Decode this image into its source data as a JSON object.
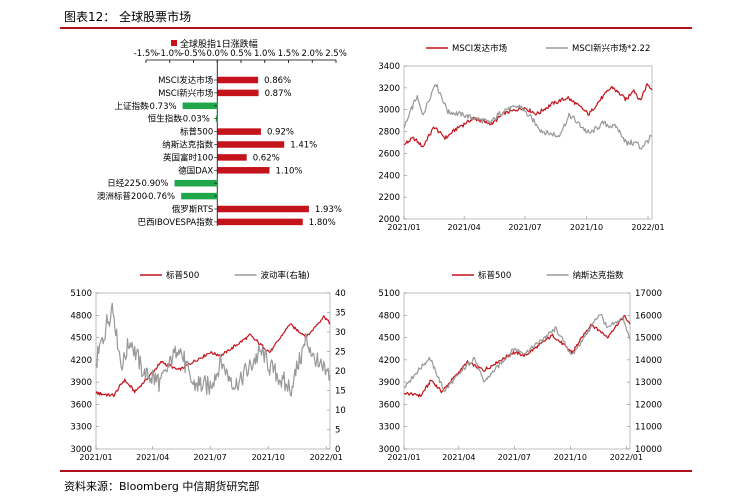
{
  "figure_title": "图表12：  全球股票市场",
  "source": "资料来源：Bloomberg  中信期货研究部",
  "colors": {
    "red": "#c4131b",
    "grey": "#999999",
    "green": "#1fa749",
    "frame": "#b0b0b0",
    "rule": "#b0121b"
  },
  "chart_data": [
    {
      "type": "bar",
      "legend": "全球股指1日涨跌幅",
      "legend_position": "top",
      "categories": [
        "MSCI发达市场",
        "MSCI新兴市场",
        "上证指数",
        "恒生指数",
        "标普500",
        "纳斯达克指数",
        "英国富时100",
        "德国DAX",
        "日经225",
        "澳洲标普200",
        "俄罗斯RTS",
        "巴西IBOVESPA指数"
      ],
      "values": [
        0.86,
        0.87,
        -0.73,
        -0.03,
        0.92,
        1.41,
        0.62,
        1.1,
        -0.9,
        -0.76,
        1.93,
        1.8
      ],
      "value_labels": [
        "0.86%",
        "0.87%",
        "-0.73%",
        "-0.03%",
        "0.92%",
        "1.41%",
        "0.62%",
        "1.10%",
        "-0.90%",
        "-0.76%",
        "1.93%",
        "1.80%"
      ],
      "xlim": [
        -1.5,
        2.5
      ],
      "x_ticks": [
        "-1.5%",
        "-1.0%",
        "-0.5%",
        "0.0%",
        "0.5%",
        "1.0%",
        "1.5%",
        "2.0%",
        "2.5%"
      ],
      "xlabel": "",
      "ylabel": ""
    },
    {
      "type": "line",
      "series": [
        {
          "name": "MSCI发达市场",
          "color": "#c4131b"
        },
        {
          "name": "MSCI新兴市场*2.22",
          "color": "#999999"
        }
      ],
      "x_range": [
        "2021-01-01",
        "2022-01-07"
      ],
      "x_ticks": [
        "2021/01",
        "2021/04",
        "2021/07",
        "2021/10",
        "2022/01"
      ],
      "ylim": [
        2000,
        3400
      ],
      "y_ticks": [
        "2000",
        "2200",
        "2400",
        "2600",
        "2800",
        "3000",
        "3200",
        "3400"
      ],
      "anchors": [
        [
          [
            "2021-01-01",
            2680
          ],
          [
            "2021-01-15",
            2740
          ],
          [
            "2021-01-29",
            2660
          ],
          [
            "2021-02-15",
            2840
          ],
          [
            "2021-03-04",
            2740
          ],
          [
            "2021-03-19",
            2820
          ],
          [
            "2021-04-15",
            2920
          ],
          [
            "2021-05-12",
            2870
          ],
          [
            "2021-06-01",
            2970
          ],
          [
            "2021-06-30",
            3020
          ],
          [
            "2021-07-19",
            2960
          ],
          [
            "2021-08-10",
            3050
          ],
          [
            "2021-09-03",
            3110
          ],
          [
            "2021-10-05",
            2960
          ],
          [
            "2021-10-20",
            3080
          ],
          [
            "2021-11-08",
            3210
          ],
          [
            "2021-11-30",
            3090
          ],
          [
            "2021-12-10",
            3190
          ],
          [
            "2021-12-20",
            3080
          ],
          [
            "2021-12-31",
            3240
          ],
          [
            "2022-01-07",
            3180
          ]
        ],
        [
          [
            "2021-01-01",
            2830
          ],
          [
            "2021-01-20",
            3120
          ],
          [
            "2021-01-29",
            2950
          ],
          [
            "2021-02-17",
            3250
          ],
          [
            "2021-03-08",
            2980
          ],
          [
            "2021-04-01",
            2950
          ],
          [
            "2021-05-10",
            2880
          ],
          [
            "2021-06-01",
            3000
          ],
          [
            "2021-06-25",
            3030
          ],
          [
            "2021-07-27",
            2800
          ],
          [
            "2021-08-20",
            2760
          ],
          [
            "2021-09-06",
            2950
          ],
          [
            "2021-10-05",
            2780
          ],
          [
            "2021-10-25",
            2870
          ],
          [
            "2021-11-15",
            2840
          ],
          [
            "2021-12-01",
            2690
          ],
          [
            "2021-12-16",
            2700
          ],
          [
            "2021-12-20",
            2640
          ],
          [
            "2022-01-07",
            2760
          ]
        ]
      ]
    },
    {
      "type": "line",
      "series": [
        {
          "name": "标普500",
          "color": "#c4131b",
          "axis": "left"
        },
        {
          "name": "波动率(右轴)",
          "color": "#999999",
          "axis": "right"
        }
      ],
      "x_range": [
        "2021-01-01",
        "2022-01-07"
      ],
      "x_ticks": [
        "2021/01",
        "2021/04",
        "2021/07",
        "2021/10",
        "2022/01"
      ],
      "ylim": [
        3000,
        5100
      ],
      "y_ticks": [
        "3000",
        "3300",
        "3600",
        "3900",
        "4200",
        "4500",
        "4800",
        "5100"
      ],
      "y2lim": [
        0,
        40
      ],
      "y2_ticks": [
        "0",
        "5",
        "10",
        "15",
        "20",
        "25",
        "30",
        "35",
        "40"
      ],
      "anchors": [
        [
          [
            "2021-01-01",
            3750
          ],
          [
            "2021-01-29",
            3720
          ],
          [
            "2021-02-15",
            3930
          ],
          [
            "2021-03-04",
            3770
          ],
          [
            "2021-04-15",
            4170
          ],
          [
            "2021-05-12",
            4060
          ],
          [
            "2021-06-30",
            4300
          ],
          [
            "2021-07-19",
            4260
          ],
          [
            "2021-09-02",
            4530
          ],
          [
            "2021-10-04",
            4300
          ],
          [
            "2021-11-04",
            4680
          ],
          [
            "2021-12-01",
            4510
          ],
          [
            "2021-12-29",
            4790
          ],
          [
            "2022-01-07",
            4680
          ]
        ],
        [
          [
            "2021-01-01",
            22
          ],
          [
            "2021-01-27",
            37
          ],
          [
            "2021-02-10",
            21
          ],
          [
            "2021-02-25",
            28
          ],
          [
            "2021-03-15",
            20
          ],
          [
            "2021-04-15",
            17
          ],
          [
            "2021-05-12",
            27
          ],
          [
            "2021-06-01",
            17
          ],
          [
            "2021-06-30",
            16
          ],
          [
            "2021-07-19",
            22
          ],
          [
            "2021-08-10",
            16
          ],
          [
            "2021-09-20",
            25
          ],
          [
            "2021-10-05",
            21
          ],
          [
            "2021-11-05",
            15
          ],
          [
            "2021-11-30",
            28
          ],
          [
            "2021-12-20",
            21
          ],
          [
            "2022-01-07",
            19
          ]
        ]
      ]
    },
    {
      "type": "line",
      "series": [
        {
          "name": "标普500",
          "color": "#c4131b",
          "axis": "left"
        },
        {
          "name": "纳斯达克指数",
          "color": "#999999",
          "axis": "right"
        }
      ],
      "x_range": [
        "2021-01-01",
        "2022-01-07"
      ],
      "x_ticks": [
        "2021/01",
        "2021/04",
        "2021/07",
        "2021/10",
        "2022/01"
      ],
      "ylim": [
        3000,
        5100
      ],
      "y_ticks": [
        "3000",
        "3300",
        "3600",
        "3900",
        "4200",
        "4500",
        "4800",
        "5100"
      ],
      "y2lim": [
        10000,
        17000
      ],
      "y2_ticks": [
        "10000",
        "11000",
        "12000",
        "13000",
        "14000",
        "15000",
        "16000",
        "17000"
      ],
      "anchors": [
        [
          [
            "2021-01-01",
            3750
          ],
          [
            "2021-01-29",
            3720
          ],
          [
            "2021-02-15",
            3930
          ],
          [
            "2021-03-04",
            3770
          ],
          [
            "2021-04-15",
            4170
          ],
          [
            "2021-05-12",
            4060
          ],
          [
            "2021-06-30",
            4300
          ],
          [
            "2021-07-19",
            4260
          ],
          [
            "2021-09-02",
            4530
          ],
          [
            "2021-10-04",
            4300
          ],
          [
            "2021-11-04",
            4680
          ],
          [
            "2021-12-01",
            4510
          ],
          [
            "2021-12-29",
            4790
          ],
          [
            "2022-01-07",
            4680
          ]
        ],
        [
          [
            "2021-01-01",
            12800
          ],
          [
            "2021-02-12",
            14100
          ],
          [
            "2021-03-08",
            12600
          ],
          [
            "2021-04-26",
            14100
          ],
          [
            "2021-05-12",
            13000
          ],
          [
            "2021-06-30",
            14500
          ],
          [
            "2021-07-19",
            14300
          ],
          [
            "2021-09-07",
            15400
          ],
          [
            "2021-10-04",
            14200
          ],
          [
            "2021-11-19",
            16100
          ],
          [
            "2021-12-01",
            15400
          ],
          [
            "2021-12-27",
            15900
          ],
          [
            "2022-01-07",
            14900
          ]
        ]
      ]
    }
  ]
}
